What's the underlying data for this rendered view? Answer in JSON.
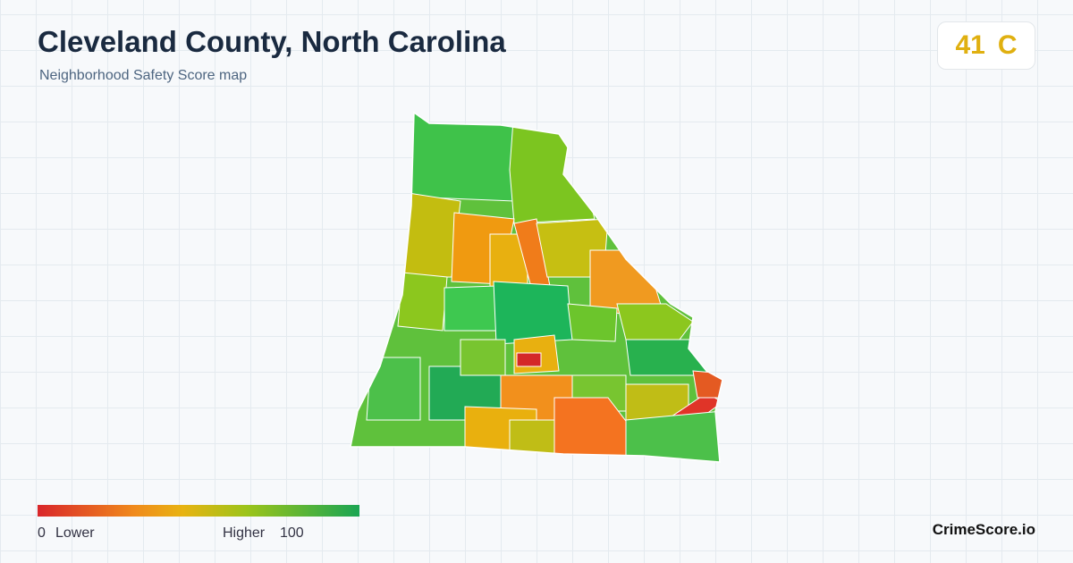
{
  "header": {
    "title": "Cleveland County, North Carolina",
    "subtitle": "Neighborhood Safety Score map"
  },
  "score": {
    "value": "41",
    "grade": "C"
  },
  "legend": {
    "min": "0",
    "min_label": "Lower",
    "max_label": "Higher",
    "max": "100"
  },
  "brand": "CrimeScore.io"
}
